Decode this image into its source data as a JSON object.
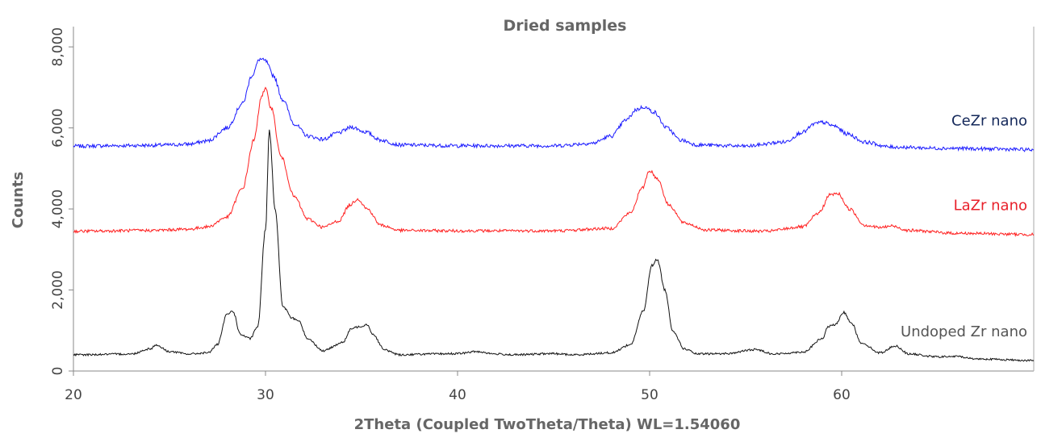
{
  "chart_data": {
    "type": "line",
    "title": "Dried samples",
    "xlabel": "2Theta (Coupled TwoTheta/Theta) WL=1.54060",
    "ylabel": "Counts",
    "xlim": [
      20,
      70
    ],
    "ylim": [
      0,
      8500
    ],
    "x_ticks": [
      "20",
      "30",
      "40",
      "50",
      "60"
    ],
    "y_ticks": [
      "0",
      "2,000",
      "4,000",
      "6,000",
      "8,000"
    ],
    "grid": false,
    "legend": "inline labels at right end of each series",
    "series": [
      {
        "name": "CeZr nano",
        "color": "#1a1aff",
        "label_color": "#14285a",
        "points": [
          [
            20,
            5550
          ],
          [
            22,
            5560
          ],
          [
            24,
            5570
          ],
          [
            25,
            5580
          ],
          [
            26,
            5600
          ],
          [
            27,
            5680
          ],
          [
            28,
            6000
          ],
          [
            28.8,
            6600
          ],
          [
            29.3,
            7300
          ],
          [
            29.7,
            7700
          ],
          [
            30.0,
            7650
          ],
          [
            30.4,
            7300
          ],
          [
            30.9,
            6700
          ],
          [
            31.5,
            6100
          ],
          [
            32.2,
            5800
          ],
          [
            33.0,
            5720
          ],
          [
            33.8,
            5880
          ],
          [
            34.5,
            6020
          ],
          [
            35.2,
            5900
          ],
          [
            36.0,
            5700
          ],
          [
            37,
            5580
          ],
          [
            40,
            5560
          ],
          [
            45,
            5560
          ],
          [
            47,
            5620
          ],
          [
            48,
            5800
          ],
          [
            48.8,
            6200
          ],
          [
            49.3,
            6450
          ],
          [
            49.7,
            6520
          ],
          [
            50.2,
            6400
          ],
          [
            50.9,
            6000
          ],
          [
            51.6,
            5700
          ],
          [
            52.5,
            5580
          ],
          [
            55,
            5550
          ],
          [
            57,
            5650
          ],
          [
            58,
            5900
          ],
          [
            58.6,
            6100
          ],
          [
            59.0,
            6140
          ],
          [
            59.6,
            6050
          ],
          [
            60.3,
            5850
          ],
          [
            61.2,
            5650
          ],
          [
            62.5,
            5530
          ],
          [
            65,
            5500
          ],
          [
            68,
            5480
          ],
          [
            70,
            5460
          ]
        ]
      },
      {
        "name": "LaZr nano",
        "color": "#ff1f1f",
        "label_color": "#e8202a",
        "points": [
          [
            20,
            3450
          ],
          [
            24,
            3470
          ],
          [
            26,
            3500
          ],
          [
            27,
            3560
          ],
          [
            28,
            3800
          ],
          [
            28.8,
            4500
          ],
          [
            29.4,
            5700
          ],
          [
            29.8,
            6800
          ],
          [
            30.0,
            6950
          ],
          [
            30.3,
            6500
          ],
          [
            30.8,
            5300
          ],
          [
            31.5,
            4300
          ],
          [
            32.2,
            3750
          ],
          [
            33.0,
            3550
          ],
          [
            33.8,
            3700
          ],
          [
            34.4,
            4100
          ],
          [
            34.8,
            4250
          ],
          [
            35.3,
            4000
          ],
          [
            36.0,
            3600
          ],
          [
            37,
            3470
          ],
          [
            40,
            3460
          ],
          [
            45,
            3460
          ],
          [
            48,
            3520
          ],
          [
            49.0,
            3900
          ],
          [
            49.6,
            4500
          ],
          [
            50.0,
            4950
          ],
          [
            50.4,
            4750
          ],
          [
            51.0,
            4100
          ],
          [
            51.8,
            3650
          ],
          [
            53,
            3480
          ],
          [
            56,
            3450
          ],
          [
            58,
            3560
          ],
          [
            58.8,
            3900
          ],
          [
            59.4,
            4350
          ],
          [
            59.8,
            4380
          ],
          [
            60.4,
            4000
          ],
          [
            61.2,
            3600
          ],
          [
            62.0,
            3540
          ],
          [
            62.6,
            3580
          ],
          [
            63.5,
            3470
          ],
          [
            66,
            3400
          ],
          [
            70,
            3370
          ]
        ]
      },
      {
        "name": "Undoped Zr nano",
        "color": "#111111",
        "label_color": "#555555",
        "points": [
          [
            20,
            400
          ],
          [
            23,
            420
          ],
          [
            24,
            550
          ],
          [
            24.3,
            640
          ],
          [
            25,
            480
          ],
          [
            26,
            420
          ],
          [
            27,
            450
          ],
          [
            27.5,
            650
          ],
          [
            28.0,
            1400
          ],
          [
            28.3,
            1480
          ],
          [
            28.7,
            900
          ],
          [
            29.2,
            800
          ],
          [
            29.6,
            1100
          ],
          [
            30.0,
            3500
          ],
          [
            30.2,
            5950
          ],
          [
            30.5,
            4000
          ],
          [
            30.9,
            1600
          ],
          [
            31.4,
            1300
          ],
          [
            31.7,
            1250
          ],
          [
            32.2,
            800
          ],
          [
            33.0,
            500
          ],
          [
            34.0,
            700
          ],
          [
            34.5,
            1050
          ],
          [
            34.9,
            1100
          ],
          [
            35.3,
            1150
          ],
          [
            35.6,
            900
          ],
          [
            36.2,
            520
          ],
          [
            37,
            400
          ],
          [
            38.5,
            420
          ],
          [
            40,
            430
          ],
          [
            41,
            480
          ],
          [
            42,
            420
          ],
          [
            43,
            400
          ],
          [
            45,
            430
          ],
          [
            46,
            400
          ],
          [
            48,
            450
          ],
          [
            49.0,
            650
          ],
          [
            49.7,
            1500
          ],
          [
            50.1,
            2600
          ],
          [
            50.4,
            2750
          ],
          [
            50.8,
            2000
          ],
          [
            51.2,
            1000
          ],
          [
            51.8,
            550
          ],
          [
            52.5,
            420
          ],
          [
            54,
            430
          ],
          [
            55.5,
            530
          ],
          [
            56.5,
            420
          ],
          [
            58,
            470
          ],
          [
            59.0,
            800
          ],
          [
            59.3,
            1100
          ],
          [
            59.7,
            1150
          ],
          [
            60.1,
            1450
          ],
          [
            60.5,
            1200
          ],
          [
            61.0,
            700
          ],
          [
            62.0,
            450
          ],
          [
            62.8,
            620
          ],
          [
            63.5,
            420
          ],
          [
            65,
            350
          ],
          [
            66,
            360
          ],
          [
            67,
            300
          ],
          [
            70,
            260
          ]
        ]
      }
    ]
  }
}
